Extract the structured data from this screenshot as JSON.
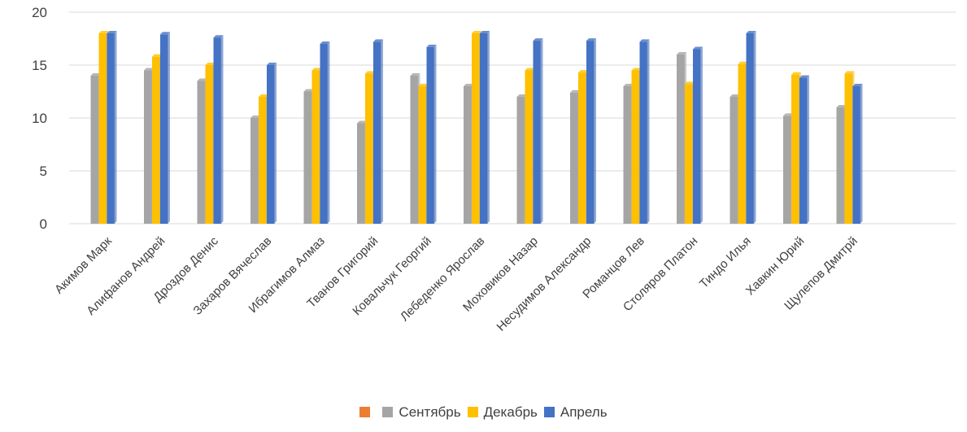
{
  "chart_data": {
    "type": "bar",
    "title": "",
    "xlabel": "",
    "ylabel": "",
    "ylim": [
      0,
      20
    ],
    "yticks": [
      0,
      5,
      10,
      15,
      20
    ],
    "grid": true,
    "legend_position": "bottom",
    "categories": [
      "Акимов Марк",
      "Алифанов Андрей",
      "Дроздов Денис",
      "Захаров Вячеслав",
      "Ибрагимов Алмаз",
      "Тванов Григорий",
      "Ковальчук Георгий",
      "Лебеденко Ярослав",
      "Моховиков Назар",
      "Несудимов Александр",
      "Романцов Лев",
      "Столяров Платон",
      "Тиндо Илья",
      "Хавкин Юрий",
      "Щулепов Дмитрй"
    ],
    "series": [
      {
        "name": "Сентябрь",
        "color": "#A5A5A5",
        "values": [
          14,
          14.5,
          13.5,
          10,
          12.5,
          9.5,
          14,
          13,
          12,
          12.4,
          13,
          16,
          12,
          10.2,
          11
        ]
      },
      {
        "name": "Декабрь",
        "color": "#FFC000",
        "values": [
          18,
          15.8,
          15,
          12,
          14.5,
          14.2,
          13,
          18,
          14.5,
          14.3,
          14.5,
          13.2,
          15.1,
          14.1,
          14.2
        ]
      },
      {
        "name": "Апрель",
        "color": "#4472C4",
        "values": [
          18,
          17.9,
          17.6,
          15,
          17,
          17.2,
          16.7,
          18,
          17.3,
          17.3,
          17.2,
          16.5,
          18,
          13.8,
          13
        ]
      }
    ],
    "legend_extra_swatch_color": "#ED7D31"
  }
}
